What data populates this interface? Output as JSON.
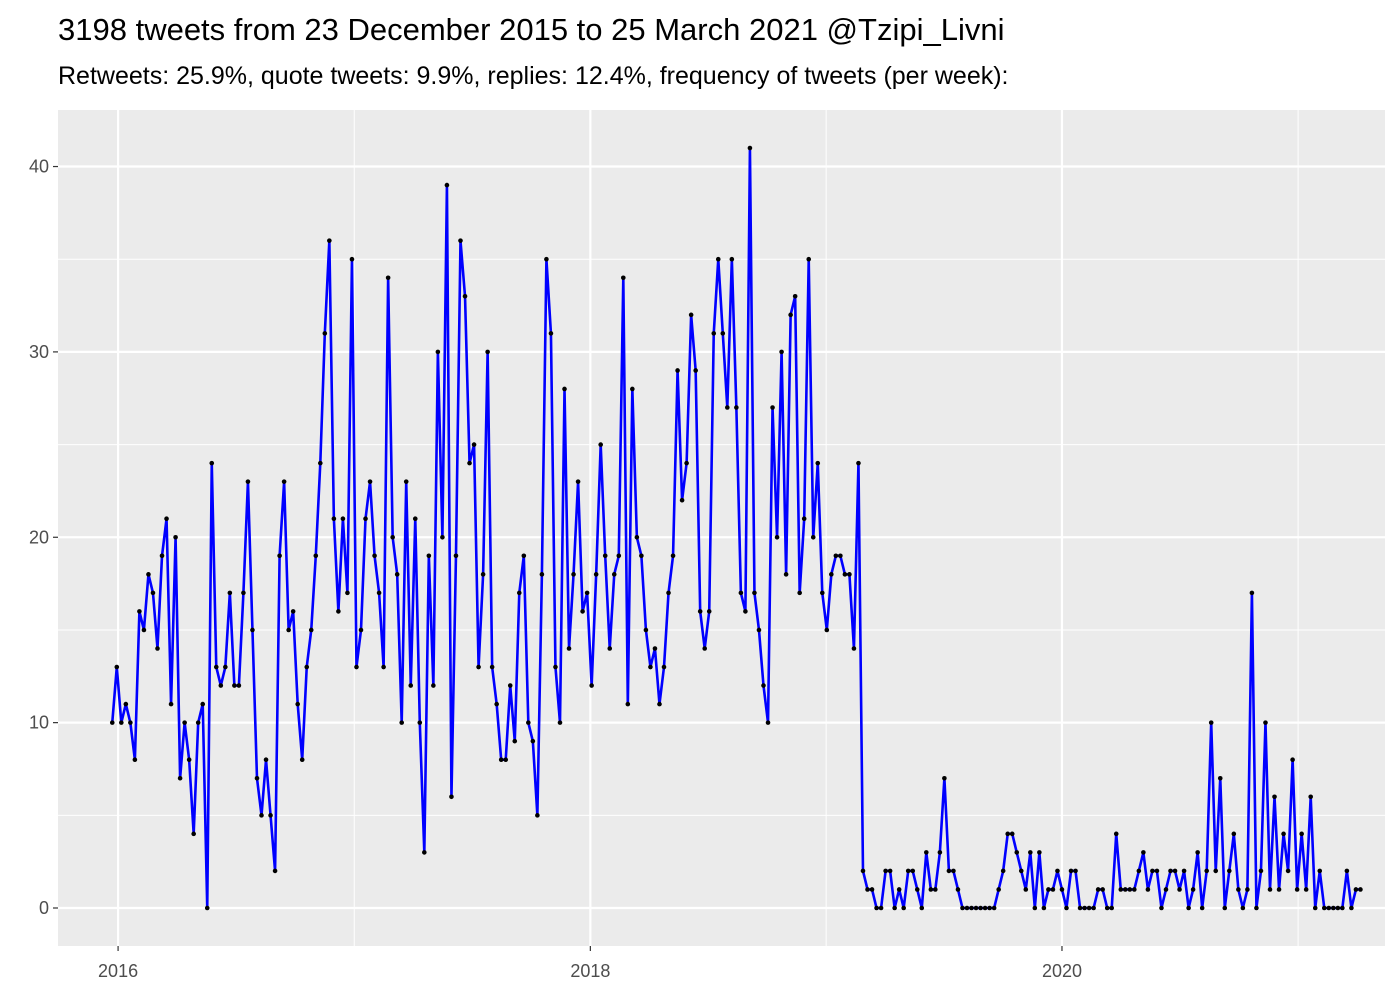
{
  "header": {
    "title": "3198 tweets from 23 December 2015 to 25 March 2021 @Tzipi_Livni",
    "subtitle": "Retweets: 25.9%, quote tweets: 9.9%, replies: 12.4%, frequency of tweets (per week):"
  },
  "chart_data": {
    "type": "line",
    "title": "3198 tweets from 23 December 2015 to 25 March 2021 @Tzipi_Livni",
    "subtitle": "Retweets: 25.9%, quote tweets: 9.9%, replies: 12.4%, frequency of tweets (per week):",
    "xlabel": "",
    "ylabel": "",
    "x_start": "2015-12-23",
    "x_step_days": 7,
    "xlim": [
      "2015-09-30",
      "2021-05-15"
    ],
    "ylim": [
      -2.05,
      43.05
    ],
    "x_ticks": [
      {
        "date": "2016-01-01",
        "label": "2016"
      },
      {
        "date": "2018-01-01",
        "label": "2018"
      },
      {
        "date": "2020-01-01",
        "label": "2020"
      }
    ],
    "y_ticks": [
      0,
      10,
      20,
      30,
      40
    ],
    "grid": true,
    "background": "#EBEBEB",
    "line_color": "#0000FF",
    "point_color": "#000000",
    "series": [
      {
        "values": [
          10,
          13,
          10,
          11,
          10,
          8,
          16,
          15,
          18,
          17,
          14,
          19,
          21,
          11,
          20,
          7,
          10,
          8,
          4,
          10,
          11,
          0,
          24,
          13,
          12,
          13,
          17,
          12,
          12,
          17,
          23,
          15,
          7,
          5,
          8,
          5,
          2,
          19,
          23,
          15,
          16,
          11,
          8,
          13,
          15,
          19,
          24,
          31,
          36,
          21,
          16,
          21,
          17,
          35,
          13,
          15,
          21,
          23,
          19,
          17,
          13,
          34,
          20,
          18,
          10,
          23,
          12,
          21,
          10,
          3,
          19,
          12,
          30,
          20,
          39,
          6,
          19,
          36,
          33,
          24,
          25,
          13,
          18,
          30,
          13,
          11,
          8,
          8,
          12,
          9,
          17,
          19,
          10,
          9,
          5,
          18,
          35,
          31,
          13,
          10,
          28,
          14,
          18,
          23,
          16,
          17,
          12,
          18,
          25,
          19,
          14,
          18,
          19,
          34,
          11,
          28,
          20,
          19,
          15,
          13,
          14,
          11,
          13,
          17,
          19,
          29,
          22,
          24,
          32,
          29,
          16,
          14,
          16,
          31,
          35,
          31,
          27,
          35,
          27,
          17,
          16,
          41,
          17,
          15,
          12,
          10,
          27,
          20,
          30,
          18,
          32,
          33,
          17,
          21,
          35,
          20,
          24,
          17,
          15,
          18,
          19,
          19,
          18,
          18,
          14,
          24,
          2,
          1,
          1,
          0,
          0,
          2,
          2,
          0,
          1,
          0,
          2,
          2,
          1,
          0,
          3,
          1,
          1,
          3,
          7,
          2,
          2,
          1,
          0,
          0,
          0,
          0,
          0,
          0,
          0,
          0,
          1,
          2,
          4,
          4,
          3,
          2,
          1,
          3,
          0,
          3,
          0,
          1,
          1,
          2,
          1,
          0,
          2,
          2,
          0,
          0,
          0,
          0,
          1,
          1,
          0,
          0,
          4,
          1,
          1,
          1,
          1,
          2,
          3,
          1,
          2,
          2,
          0,
          1,
          2,
          2,
          1,
          2,
          0,
          1,
          3,
          0,
          2,
          10,
          2,
          7,
          0,
          2,
          4,
          1,
          0,
          1,
          17,
          0,
          2,
          10,
          1,
          6,
          1,
          4,
          2,
          8,
          1,
          4,
          1,
          6,
          0,
          2,
          0,
          0,
          0,
          0,
          0,
          2,
          0,
          1,
          1
        ]
      }
    ]
  }
}
